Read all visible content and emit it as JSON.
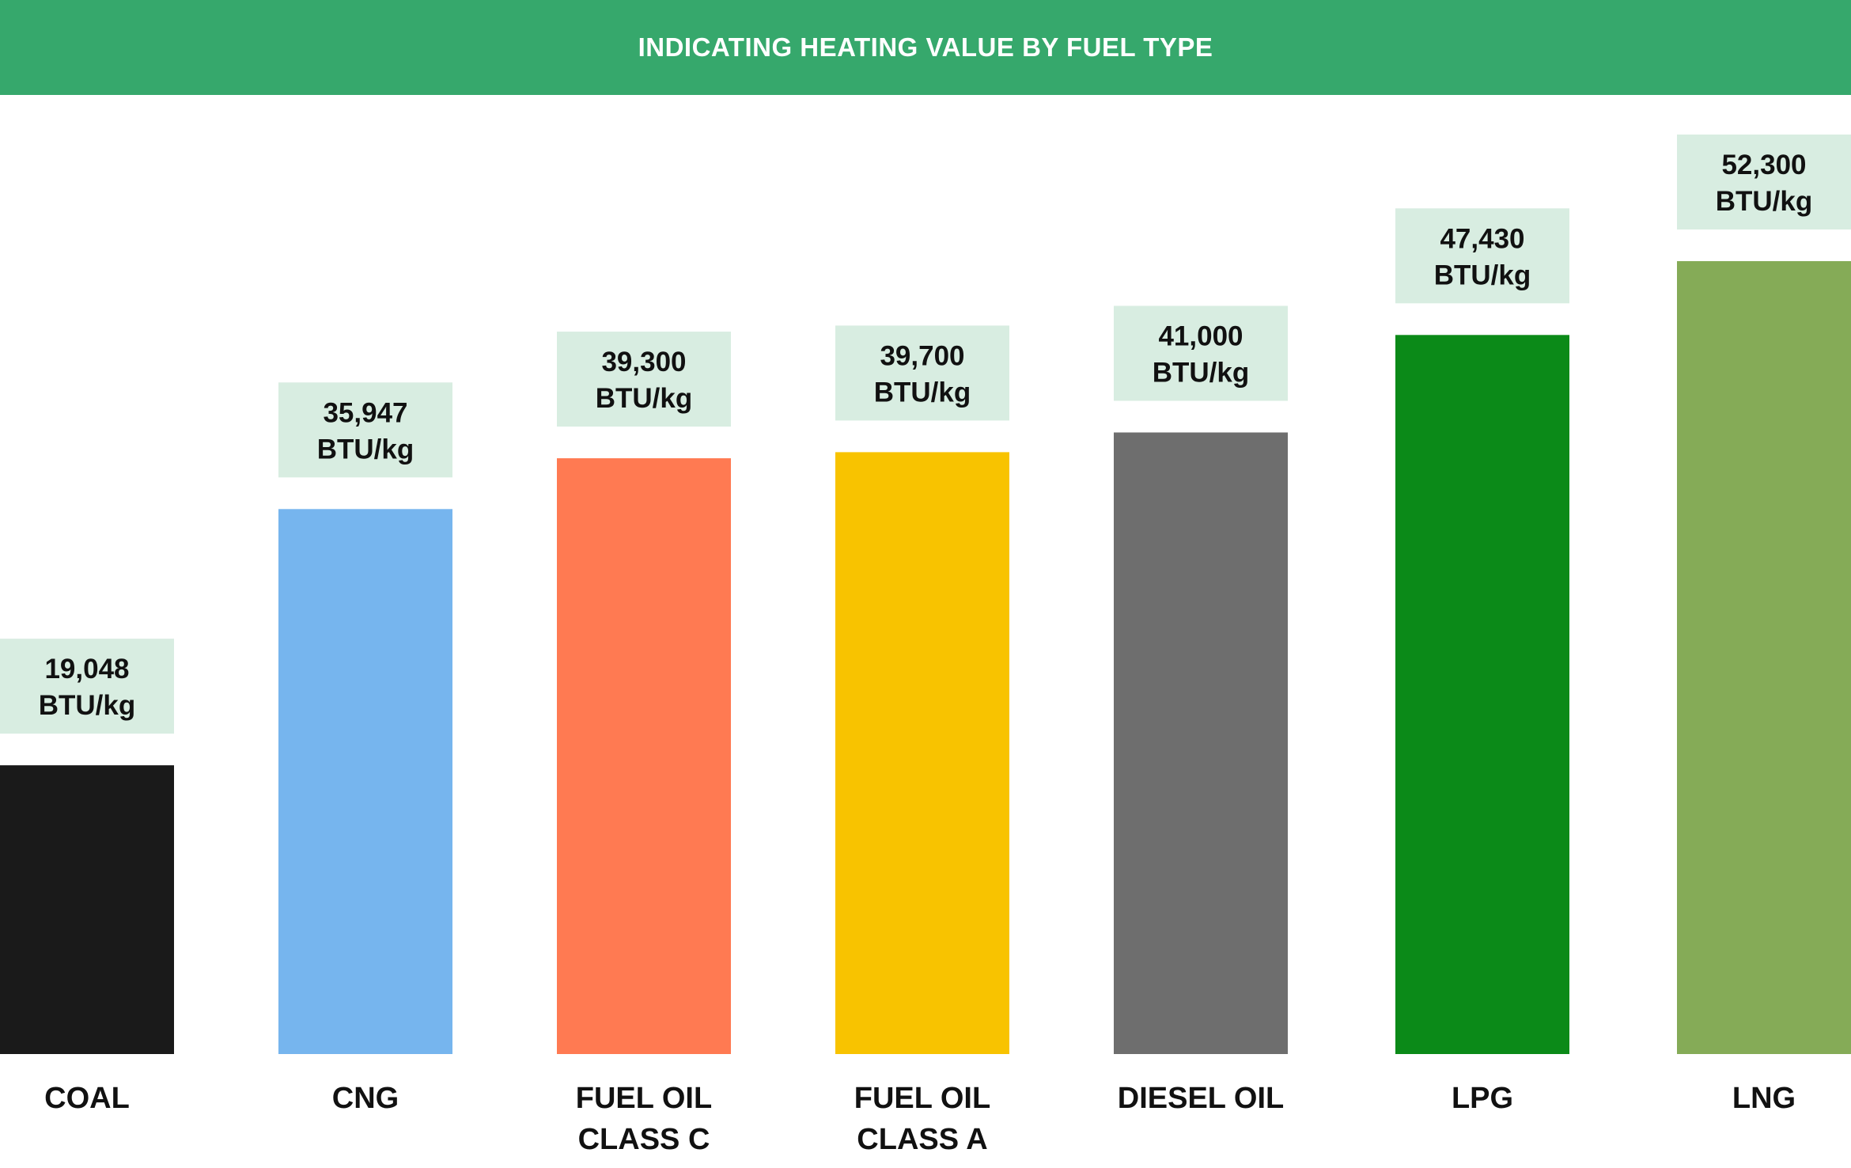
{
  "chart_data": {
    "type": "bar",
    "title": "INDICATING HEATING VALUE BY FUEL TYPE",
    "unit": "BTU/kg",
    "categories": [
      [
        "COAL"
      ],
      [
        "CNG"
      ],
      [
        "FUEL OIL",
        "CLASS C"
      ],
      [
        "FUEL OIL",
        "CLASS A"
      ],
      [
        "DIESEL OIL"
      ],
      [
        "LPG"
      ],
      [
        "LNG"
      ]
    ],
    "values": [
      19048,
      35947,
      39300,
      39700,
      41000,
      47430,
      52300
    ],
    "value_labels": [
      "19,048",
      "35,947",
      "39,300",
      "39,700",
      "41,000",
      "47,430",
      "52,300"
    ],
    "colors": [
      "#1a1a1a",
      "#76b5ee",
      "#ff7a52",
      "#f8c300",
      "#6e6e6e",
      "#0b8a18",
      "#85ab57"
    ],
    "label_box_color": "#d8ede1",
    "header_color": "#36a86c",
    "grid": false,
    "legend": "none"
  }
}
